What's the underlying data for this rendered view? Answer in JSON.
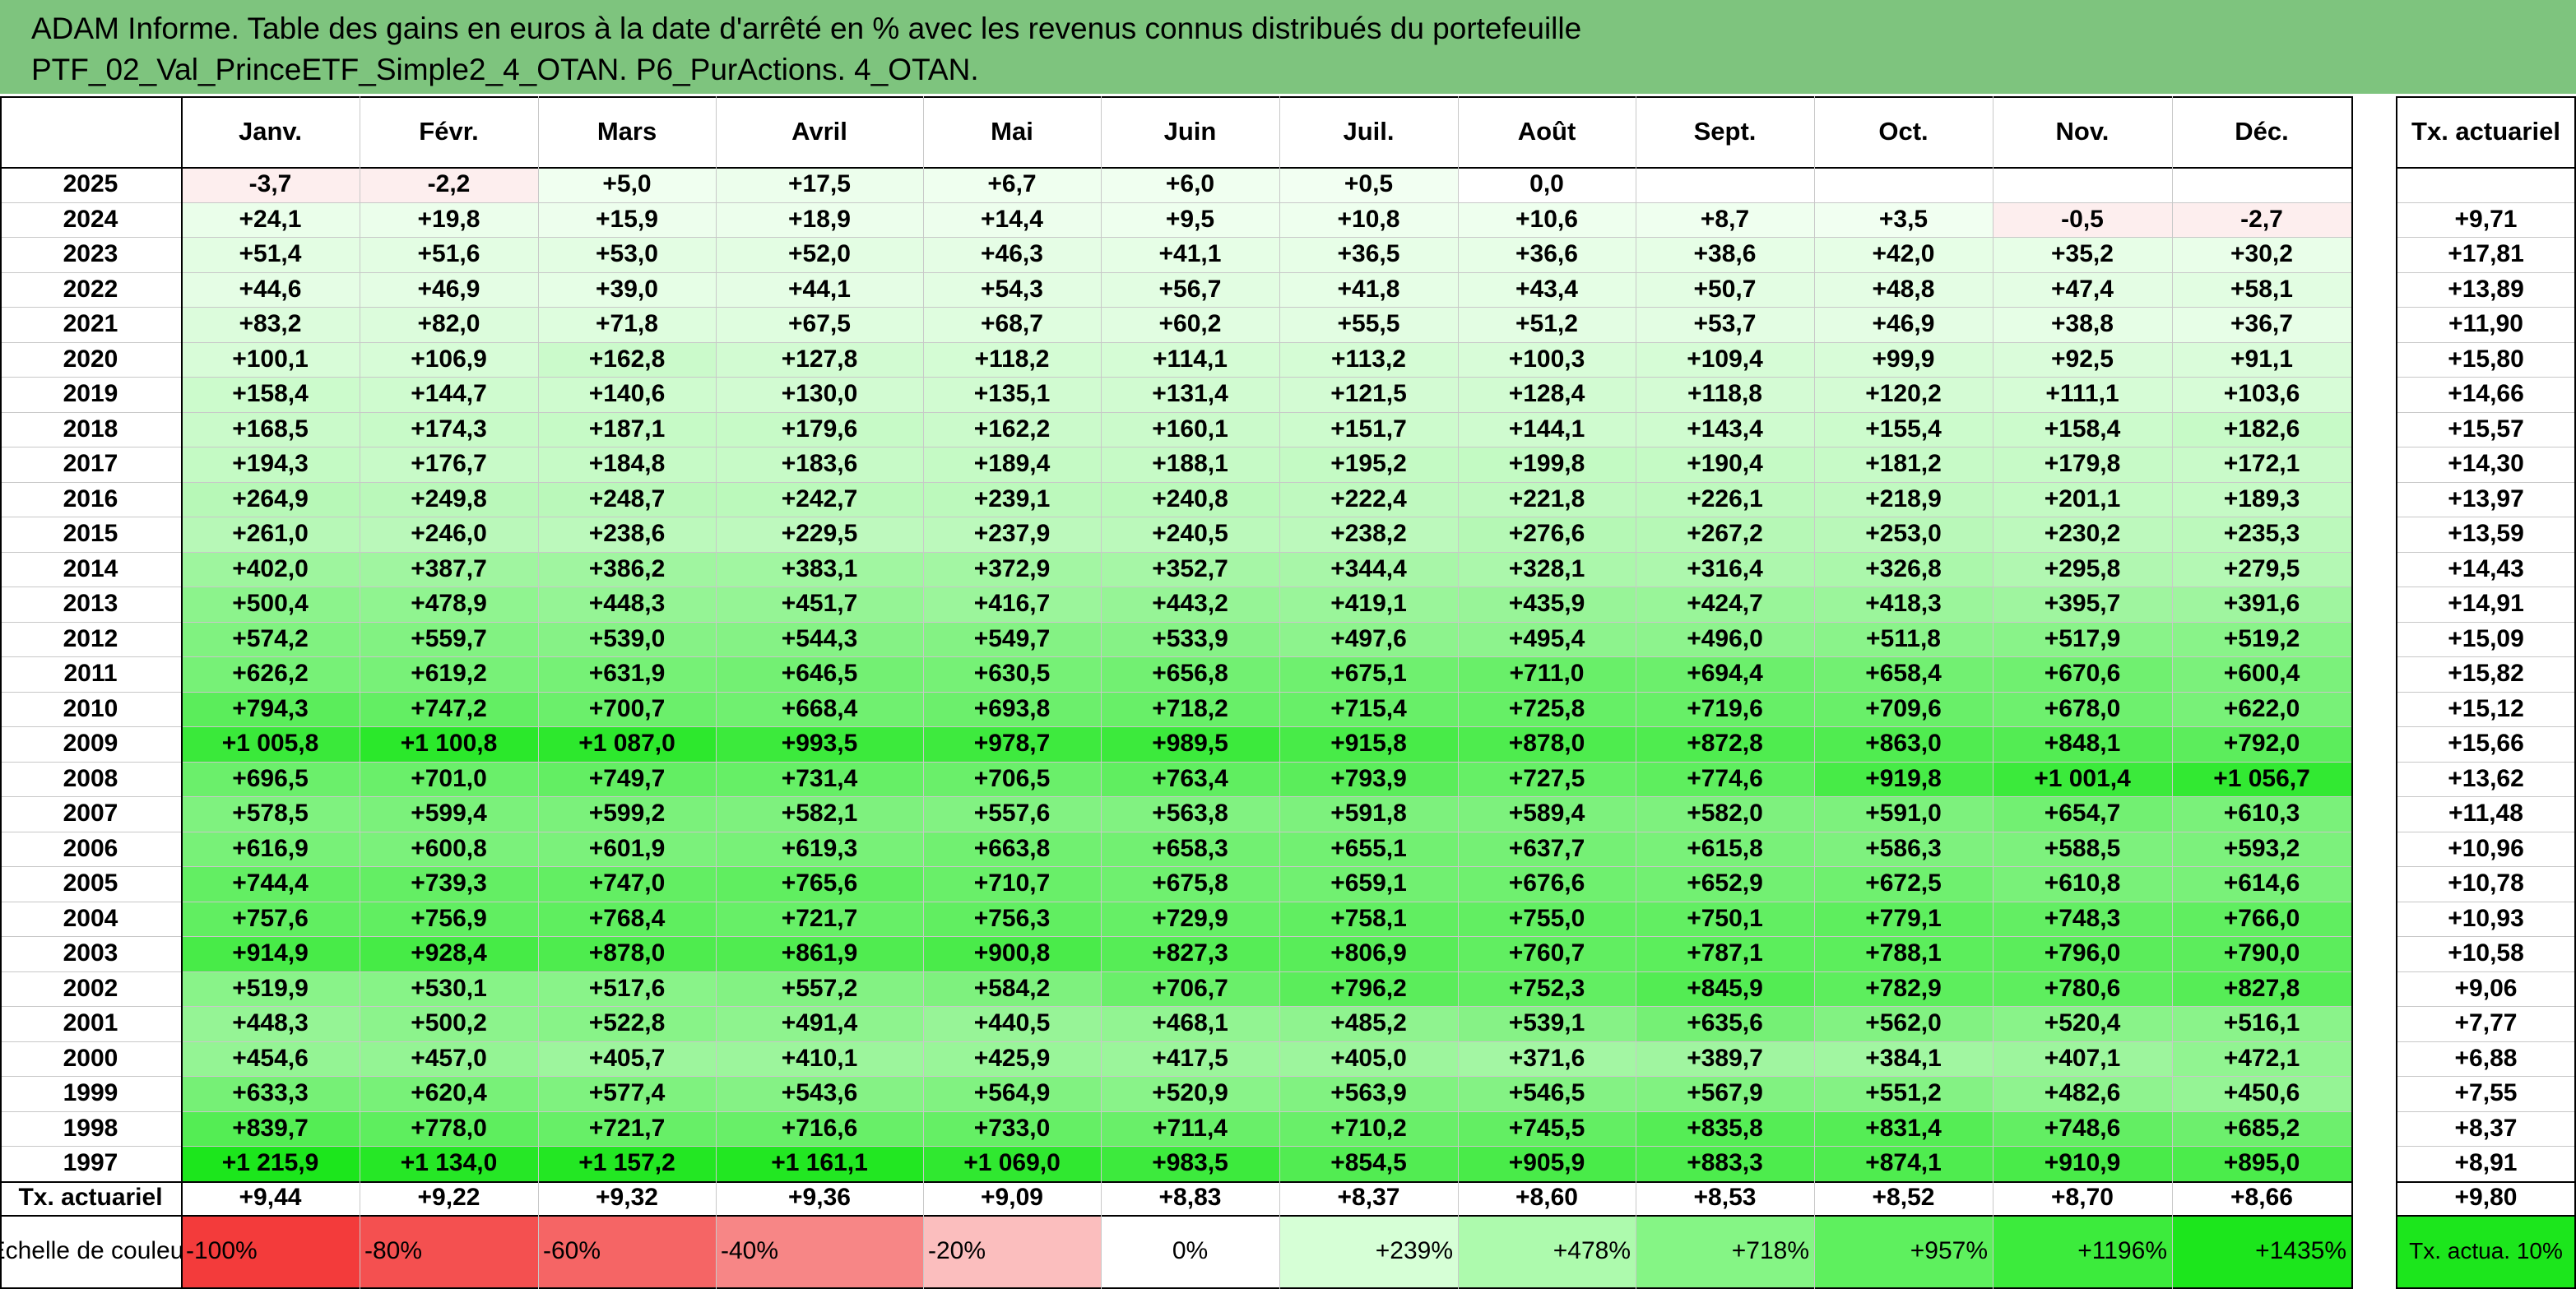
{
  "title": {
    "line1": "ADAM Informe. Table des gains en euros à la date d'arrêté en % avec les revenus connus distribués du portefeuille",
    "line2": "PTF_02_Val_PrinceETF_Simple2_4_OTAN. P6_PurActions. 4_OTAN."
  },
  "chart_data": {
    "type": "table",
    "columns": [
      "Janv.",
      "Févr.",
      "Mars",
      "Avril",
      "Mai",
      "Juin",
      "Juil.",
      "Août",
      "Sept.",
      "Oct.",
      "Nov.",
      "Déc."
    ],
    "rate_header": "Tx. actuariel",
    "rows": [
      {
        "year": "2025",
        "values": [
          "-3,7",
          "-2,2",
          "+5,0",
          "+17,5",
          "+6,7",
          "+6,0",
          "+0,5",
          "0,0",
          "",
          "",
          "",
          ""
        ],
        "rate": ""
      },
      {
        "year": "2024",
        "values": [
          "+24,1",
          "+19,8",
          "+15,9",
          "+18,9",
          "+14,4",
          "+9,5",
          "+10,8",
          "+10,6",
          "+8,7",
          "+3,5",
          "-0,5",
          "-2,7"
        ],
        "rate": "+9,71"
      },
      {
        "year": "2023",
        "values": [
          "+51,4",
          "+51,6",
          "+53,0",
          "+52,0",
          "+46,3",
          "+41,1",
          "+36,5",
          "+36,6",
          "+38,6",
          "+42,0",
          "+35,2",
          "+30,2"
        ],
        "rate": "+17,81"
      },
      {
        "year": "2022",
        "values": [
          "+44,6",
          "+46,9",
          "+39,0",
          "+44,1",
          "+54,3",
          "+56,7",
          "+41,8",
          "+43,4",
          "+50,7",
          "+48,8",
          "+47,4",
          "+58,1"
        ],
        "rate": "+13,89"
      },
      {
        "year": "2021",
        "values": [
          "+83,2",
          "+82,0",
          "+71,8",
          "+67,5",
          "+68,7",
          "+60,2",
          "+55,5",
          "+51,2",
          "+53,7",
          "+46,9",
          "+38,8",
          "+36,7"
        ],
        "rate": "+11,90"
      },
      {
        "year": "2020",
        "values": [
          "+100,1",
          "+106,9",
          "+162,8",
          "+127,8",
          "+118,2",
          "+114,1",
          "+113,2",
          "+100,3",
          "+109,4",
          "+99,9",
          "+92,5",
          "+91,1"
        ],
        "rate": "+15,80"
      },
      {
        "year": "2019",
        "values": [
          "+158,4",
          "+144,7",
          "+140,6",
          "+130,0",
          "+135,1",
          "+131,4",
          "+121,5",
          "+128,4",
          "+118,8",
          "+120,2",
          "+111,1",
          "+103,6"
        ],
        "rate": "+14,66"
      },
      {
        "year": "2018",
        "values": [
          "+168,5",
          "+174,3",
          "+187,1",
          "+179,6",
          "+162,2",
          "+160,1",
          "+151,7",
          "+144,1",
          "+143,4",
          "+155,4",
          "+158,4",
          "+182,6"
        ],
        "rate": "+15,57"
      },
      {
        "year": "2017",
        "values": [
          "+194,3",
          "+176,7",
          "+184,8",
          "+183,6",
          "+189,4",
          "+188,1",
          "+195,2",
          "+199,8",
          "+190,4",
          "+181,2",
          "+179,8",
          "+172,1"
        ],
        "rate": "+14,30"
      },
      {
        "year": "2016",
        "values": [
          "+264,9",
          "+249,8",
          "+248,7",
          "+242,7",
          "+239,1",
          "+240,8",
          "+222,4",
          "+221,8",
          "+226,1",
          "+218,9",
          "+201,1",
          "+189,3"
        ],
        "rate": "+13,97"
      },
      {
        "year": "2015",
        "values": [
          "+261,0",
          "+246,0",
          "+238,6",
          "+229,5",
          "+237,9",
          "+240,5",
          "+238,2",
          "+276,6",
          "+267,2",
          "+253,0",
          "+230,2",
          "+235,3"
        ],
        "rate": "+13,59"
      },
      {
        "year": "2014",
        "values": [
          "+402,0",
          "+387,7",
          "+386,2",
          "+383,1",
          "+372,9",
          "+352,7",
          "+344,4",
          "+328,1",
          "+316,4",
          "+326,8",
          "+295,8",
          "+279,5"
        ],
        "rate": "+14,43"
      },
      {
        "year": "2013",
        "values": [
          "+500,4",
          "+478,9",
          "+448,3",
          "+451,7",
          "+416,7",
          "+443,2",
          "+419,1",
          "+435,9",
          "+424,7",
          "+418,3",
          "+395,7",
          "+391,6"
        ],
        "rate": "+14,91"
      },
      {
        "year": "2012",
        "values": [
          "+574,2",
          "+559,7",
          "+539,0",
          "+544,3",
          "+549,7",
          "+533,9",
          "+497,6",
          "+495,4",
          "+496,0",
          "+511,8",
          "+517,9",
          "+519,2"
        ],
        "rate": "+15,09"
      },
      {
        "year": "2011",
        "values": [
          "+626,2",
          "+619,2",
          "+631,9",
          "+646,5",
          "+630,5",
          "+656,8",
          "+675,1",
          "+711,0",
          "+694,4",
          "+658,4",
          "+670,6",
          "+600,4"
        ],
        "rate": "+15,82"
      },
      {
        "year": "2010",
        "values": [
          "+794,3",
          "+747,2",
          "+700,7",
          "+668,4",
          "+693,8",
          "+718,2",
          "+715,4",
          "+725,8",
          "+719,6",
          "+709,6",
          "+678,0",
          "+622,0"
        ],
        "rate": "+15,12"
      },
      {
        "year": "2009",
        "values": [
          "+1 005,8",
          "+1 100,8",
          "+1 087,0",
          "+993,5",
          "+978,7",
          "+989,5",
          "+915,8",
          "+878,0",
          "+872,8",
          "+863,0",
          "+848,1",
          "+792,0"
        ],
        "rate": "+15,66"
      },
      {
        "year": "2008",
        "values": [
          "+696,5",
          "+701,0",
          "+749,7",
          "+731,4",
          "+706,5",
          "+763,4",
          "+793,9",
          "+727,5",
          "+774,6",
          "+919,8",
          "+1 001,4",
          "+1 056,7"
        ],
        "rate": "+13,62"
      },
      {
        "year": "2007",
        "values": [
          "+578,5",
          "+599,4",
          "+599,2",
          "+582,1",
          "+557,6",
          "+563,8",
          "+591,8",
          "+589,4",
          "+582,0",
          "+591,0",
          "+654,7",
          "+610,3"
        ],
        "rate": "+11,48"
      },
      {
        "year": "2006",
        "values": [
          "+616,9",
          "+600,8",
          "+601,9",
          "+619,3",
          "+663,8",
          "+658,3",
          "+655,1",
          "+637,7",
          "+615,8",
          "+586,3",
          "+588,5",
          "+593,2"
        ],
        "rate": "+10,96"
      },
      {
        "year": "2005",
        "values": [
          "+744,4",
          "+739,3",
          "+747,0",
          "+765,6",
          "+710,7",
          "+675,8",
          "+659,1",
          "+676,6",
          "+652,9",
          "+672,5",
          "+610,8",
          "+614,6"
        ],
        "rate": "+10,78"
      },
      {
        "year": "2004",
        "values": [
          "+757,6",
          "+756,9",
          "+768,4",
          "+721,7",
          "+756,3",
          "+729,9",
          "+758,1",
          "+755,0",
          "+750,1",
          "+779,1",
          "+748,3",
          "+766,0"
        ],
        "rate": "+10,93"
      },
      {
        "year": "2003",
        "values": [
          "+914,9",
          "+928,4",
          "+878,0",
          "+861,9",
          "+900,8",
          "+827,3",
          "+806,9",
          "+760,7",
          "+787,1",
          "+788,1",
          "+796,0",
          "+790,0"
        ],
        "rate": "+10,58"
      },
      {
        "year": "2002",
        "values": [
          "+519,9",
          "+530,1",
          "+517,6",
          "+557,2",
          "+584,2",
          "+706,7",
          "+796,2",
          "+752,3",
          "+845,9",
          "+782,9",
          "+780,6",
          "+827,8"
        ],
        "rate": "+9,06"
      },
      {
        "year": "2001",
        "values": [
          "+448,3",
          "+500,2",
          "+522,8",
          "+491,4",
          "+440,5",
          "+468,1",
          "+485,2",
          "+539,1",
          "+635,6",
          "+562,0",
          "+520,4",
          "+516,1"
        ],
        "rate": "+7,77"
      },
      {
        "year": "2000",
        "values": [
          "+454,6",
          "+457,0",
          "+405,7",
          "+410,1",
          "+425,9",
          "+417,5",
          "+405,0",
          "+371,6",
          "+389,7",
          "+384,1",
          "+407,1",
          "+472,1"
        ],
        "rate": "+6,88"
      },
      {
        "year": "1999",
        "values": [
          "+633,3",
          "+620,4",
          "+577,4",
          "+543,6",
          "+564,9",
          "+520,9",
          "+563,9",
          "+546,5",
          "+567,9",
          "+551,2",
          "+482,6",
          "+450,6"
        ],
        "rate": "+7,55"
      },
      {
        "year": "1998",
        "values": [
          "+839,7",
          "+778,0",
          "+721,7",
          "+716,6",
          "+733,0",
          "+711,4",
          "+710,2",
          "+745,5",
          "+835,8",
          "+831,4",
          "+748,6",
          "+685,2"
        ],
        "rate": "+8,37"
      },
      {
        "year": "1997",
        "values": [
          "+1 215,9",
          "+1 134,0",
          "+1 157,2",
          "+1 161,1",
          "+1 069,0",
          "+983,5",
          "+854,5",
          "+905,9",
          "+883,3",
          "+874,1",
          "+910,9",
          "+895,0"
        ],
        "rate": "+8,91"
      }
    ],
    "rate_row": {
      "label": "Tx. actuariel",
      "values": [
        "+9,44",
        "+9,22",
        "+9,32",
        "+9,36",
        "+9,09",
        "+8,83",
        "+8,37",
        "+8,60",
        "+8,53",
        "+8,52",
        "+8,70",
        "+8,66"
      ],
      "rate": "+9,80"
    },
    "color_scale": {
      "label": "Echelle de couleur",
      "steps": [
        "-100%",
        "-80%",
        "-60%",
        "-40%",
        "-20%",
        "0%",
        "+239%",
        "+478%",
        "+718%",
        "+957%",
        "+1196%",
        "+1435%"
      ],
      "colors": [
        "#f33b3b",
        "#f45050",
        "#f56565",
        "#f78686",
        "#fbbebe",
        "#ffffff",
        "#d6ffd6",
        "#adfaad",
        "#85f585",
        "#5ef05e",
        "#3ceb3c",
        "#1ce61c"
      ],
      "rate_label": "Tx. actua. 10%",
      "rate_color": "#1ce61c"
    },
    "colors": {
      "title_bg": "#7ec47e",
      "positive_max": "#1ce61c",
      "negative_light": "#fdeeee"
    }
  }
}
